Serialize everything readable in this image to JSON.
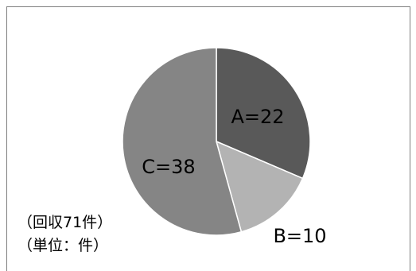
{
  "chart_data": {
    "type": "pie",
    "slices": [
      {
        "category": "A",
        "value": 22,
        "label": "A=22",
        "color": "#595959"
      },
      {
        "category": "B",
        "value": 10,
        "label": "B=10",
        "color": "#b3b3b3"
      },
      {
        "category": "C",
        "value": 38,
        "label": "C=38",
        "color": "#858585"
      }
    ],
    "start_angle_deg": 0,
    "direction": "clockwise",
    "annotations": [
      "（回収71件）",
      "（単位：件）"
    ]
  },
  "colors": {
    "border": "#7f7f7f",
    "slice_edge": "#ffffff",
    "background": "#ffffff"
  }
}
